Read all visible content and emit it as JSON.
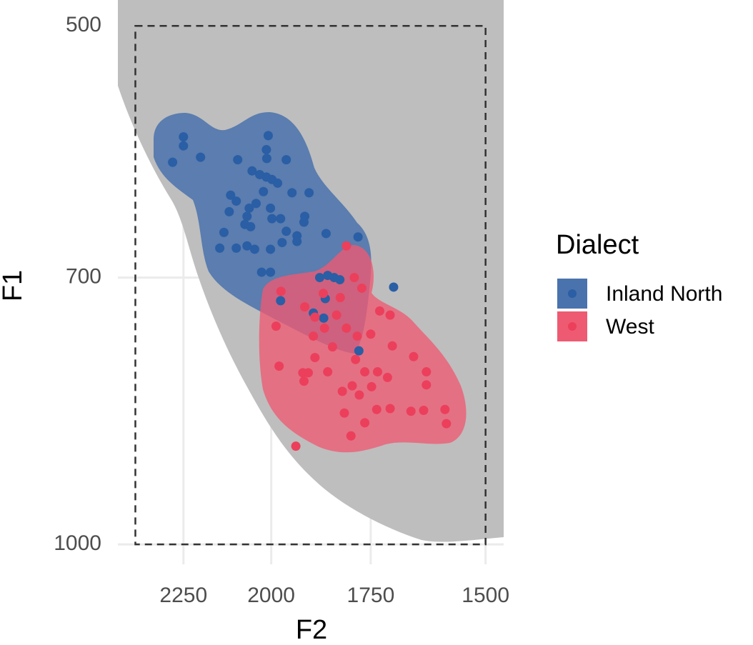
{
  "chart_data": {
    "type": "scatter",
    "xlabel": "F2",
    "ylabel": "F1",
    "log_x": true,
    "log_y": true,
    "xlim": [
      2457,
      1464
    ],
    "ylim": [
      483,
      1027
    ],
    "xticks": [
      2250,
      2000,
      1750,
      1500
    ],
    "yticks": [
      500,
      700,
      1000
    ],
    "grid": true,
    "region": {
      "x": [
        2400,
        1500
      ],
      "y": [
        500,
        1000
      ]
    },
    "legend_title": "Dialect",
    "legend": "right",
    "series": [
      {
        "name": "Inland North",
        "color": "#2a5ea5",
        "area_color": "#4a72ad",
        "x": [
          2250,
          2250,
          2283,
          2199,
          2008,
          2092,
          2013,
          2012,
          1960,
          2052,
          2031,
          2013,
          1998,
          1983,
          2021,
          1945,
          1901,
          2112,
          2096,
          2041,
          2060,
          2002,
          2116,
          2066,
          2072,
          2056,
          1998,
          1975,
          1912,
          1914,
          2131,
          1960,
          1932,
          1858,
          2143,
          2096,
          2066,
          2045,
          2002,
          1971,
          1932,
          1780,
          2026,
          2002,
          1874,
          1854,
          1838,
          1824,
          1975,
          1890,
          1860,
          1864,
          1778,
          1697
        ],
        "y": [
          580,
          587,
          600,
          596,
          579,
          598,
          590,
          597,
          598,
          607,
          610,
          612,
          614,
          617,
          624,
          625,
          625,
          627,
          632,
          634,
          638,
          638,
          641,
          645,
          652,
          654,
          647,
          647,
          645,
          650,
          659,
          658,
          662,
          660,
          673,
          673,
          671,
          674,
          674,
          668,
          667,
          663,
          695,
          695,
          700,
          698,
          700,
          702,
          722,
          734,
          720,
          739,
          772,
          709
        ]
      },
      {
        "name": "West",
        "color": "#ec3f5b",
        "area_color": "#ee5a72",
        "x": [
          1808,
          1974,
          1865,
          1823,
          1771,
          1789,
          1912,
          1832,
          1862,
          1890,
          1729,
          1705,
          1987,
          1808,
          1700,
          1782,
          1886,
          1842,
          1750,
          1786,
          1979,
          1917,
          1903,
          1854,
          1914,
          1764,
          1734,
          1711,
          1652,
          1624,
          1794,
          1748,
          1624,
          1818,
          1777,
          1813,
          1736,
          1705,
          1658,
          1630,
          1584,
          1581,
          1764,
          1797,
          1935,
          1886
        ],
        "y": [
          671,
          713,
          715,
          719,
          710,
          700,
          728,
          736,
          749,
          757,
          732,
          736,
          747,
          749,
          767,
          757,
          779,
          768,
          755,
          781,
          788,
          795,
          795,
          794,
          804,
          794,
          794,
          800,
          778,
          794,
          809,
          810,
          808,
          815,
          819,
          839,
          835,
          834,
          837,
          836,
          835,
          851,
          850,
          865,
          877,
          738
        ]
      }
    ]
  }
}
